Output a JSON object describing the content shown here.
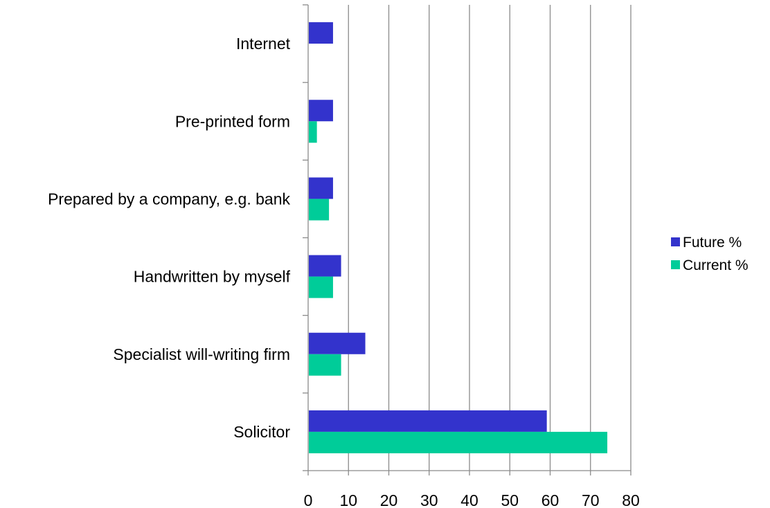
{
  "chart_data": {
    "type": "bar",
    "orientation": "horizontal",
    "categories": [
      "Internet",
      "Pre-printed form",
      "Prepared by a company, e.g. bank",
      "Handwritten by myself",
      "Specialist will-writing firm",
      "Solicitor"
    ],
    "series": [
      {
        "name": "Future %",
        "color": "#3333cc",
        "values": [
          6,
          6,
          6,
          8,
          14,
          59
        ]
      },
      {
        "name": "Current %",
        "color": "#00cc99",
        "values": [
          0,
          2,
          5,
          6,
          8,
          74
        ]
      }
    ],
    "xlim": [
      0,
      80
    ],
    "xticks": [
      0,
      10,
      20,
      30,
      40,
      50,
      60,
      70,
      80
    ],
    "grid": "vertical",
    "legend_position": "right"
  }
}
